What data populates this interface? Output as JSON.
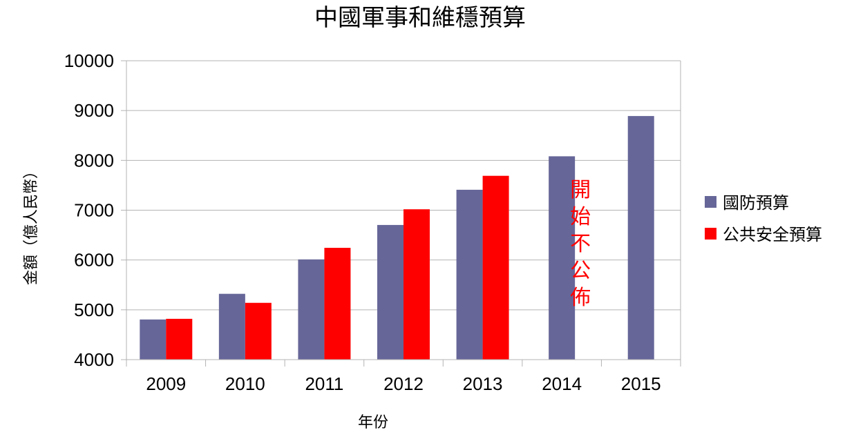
{
  "chart_data": {
    "type": "bar",
    "title": "中國軍事和維穩預算",
    "xlabel": "年份",
    "ylabel": "金額（億人民幣）",
    "categories": [
      "2009",
      "2010",
      "2011",
      "2012",
      "2013",
      "2014",
      "2015"
    ],
    "series": [
      {
        "name": "國防預算",
        "color": "#666699",
        "values": [
          4806,
          5321,
          6012,
          6703,
          7410,
          8082,
          8890
        ]
      },
      {
        "name": "公共安全預算",
        "color": "#ff0000",
        "values": [
          4819,
          5140,
          6244,
          7018,
          7690,
          null,
          null
        ]
      }
    ],
    "ylim": [
      4000,
      10000
    ],
    "yticks": [
      4000,
      5000,
      6000,
      7000,
      8000,
      9000,
      10000
    ],
    "grid": true,
    "legend_position": "right",
    "annotation": {
      "text": "開始不公佈",
      "color": "#ff0000"
    }
  }
}
